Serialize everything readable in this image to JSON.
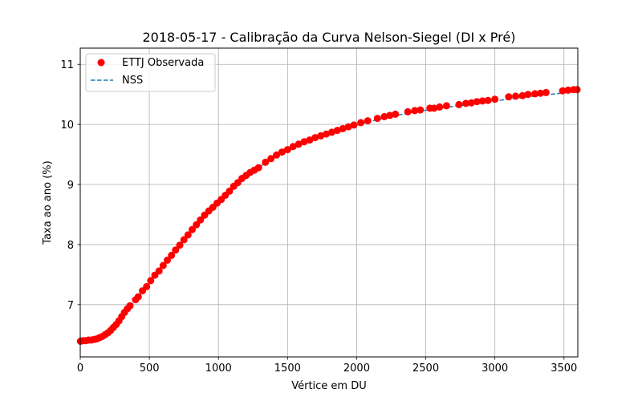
{
  "chart_data": {
    "type": "scatter",
    "title": "2018-05-17 - Calibração da Curva Nelson-Siegel (DI x Pré)",
    "xlabel": "Vértice em DU",
    "ylabel": "Taxa ao ano (%)",
    "xlim": [
      0,
      3600
    ],
    "ylim": [
      6.13,
      11.27
    ],
    "xticks": [
      0,
      500,
      1000,
      1500,
      2000,
      2500,
      3000,
      3500
    ],
    "yticks": [
      7,
      8,
      9,
      10,
      11
    ],
    "grid": true,
    "legend_position": "top-left",
    "series": [
      {
        "name": "ETTJ Observada",
        "kind": "scatter",
        "color": "#ff0000",
        "points": [
          [
            1,
            6.39
          ],
          [
            20,
            6.4
          ],
          [
            40,
            6.4
          ],
          [
            60,
            6.41
          ],
          [
            80,
            6.41
          ],
          [
            100,
            6.42
          ],
          [
            120,
            6.43
          ],
          [
            140,
            6.45
          ],
          [
            160,
            6.47
          ],
          [
            180,
            6.5
          ],
          [
            200,
            6.53
          ],
          [
            220,
            6.57
          ],
          [
            240,
            6.62
          ],
          [
            260,
            6.67
          ],
          [
            280,
            6.73
          ],
          [
            300,
            6.8
          ],
          [
            320,
            6.87
          ],
          [
            340,
            6.93
          ],
          [
            360,
            6.98
          ],
          [
            400,
            7.08
          ],
          [
            420,
            7.13
          ],
          [
            450,
            7.23
          ],
          [
            480,
            7.3
          ],
          [
            510,
            7.4
          ],
          [
            540,
            7.49
          ],
          [
            570,
            7.56
          ],
          [
            600,
            7.65
          ],
          [
            630,
            7.74
          ],
          [
            660,
            7.82
          ],
          [
            690,
            7.91
          ],
          [
            720,
            7.99
          ],
          [
            750,
            8.08
          ],
          [
            780,
            8.16
          ],
          [
            810,
            8.25
          ],
          [
            840,
            8.33
          ],
          [
            870,
            8.41
          ],
          [
            900,
            8.49
          ],
          [
            930,
            8.56
          ],
          [
            960,
            8.62
          ],
          [
            990,
            8.69
          ],
          [
            1020,
            8.75
          ],
          [
            1050,
            8.82
          ],
          [
            1080,
            8.89
          ],
          [
            1110,
            8.97
          ],
          [
            1140,
            9.03
          ],
          [
            1170,
            9.1
          ],
          [
            1200,
            9.15
          ],
          [
            1230,
            9.2
          ],
          [
            1260,
            9.24
          ],
          [
            1290,
            9.28
          ],
          [
            1340,
            9.37
          ],
          [
            1380,
            9.43
          ],
          [
            1420,
            9.49
          ],
          [
            1460,
            9.54
          ],
          [
            1500,
            9.58
          ],
          [
            1540,
            9.63
          ],
          [
            1580,
            9.67
          ],
          [
            1620,
            9.71
          ],
          [
            1660,
            9.74
          ],
          [
            1700,
            9.78
          ],
          [
            1740,
            9.81
          ],
          [
            1780,
            9.84
          ],
          [
            1820,
            9.87
          ],
          [
            1860,
            9.9
          ],
          [
            1900,
            9.93
          ],
          [
            1940,
            9.96
          ],
          [
            1980,
            9.99
          ],
          [
            2030,
            10.03
          ],
          [
            2080,
            10.06
          ],
          [
            2150,
            10.1
          ],
          [
            2200,
            10.13
          ],
          [
            2240,
            10.15
          ],
          [
            2280,
            10.17
          ],
          [
            2370,
            10.21
          ],
          [
            2420,
            10.23
          ],
          [
            2460,
            10.24
          ],
          [
            2530,
            10.27
          ],
          [
            2560,
            10.27
          ],
          [
            2600,
            10.29
          ],
          [
            2650,
            10.31
          ],
          [
            2740,
            10.33
          ],
          [
            2790,
            10.35
          ],
          [
            2830,
            10.36
          ],
          [
            2870,
            10.38
          ],
          [
            2910,
            10.39
          ],
          [
            2950,
            10.4
          ],
          [
            3000,
            10.42
          ],
          [
            3100,
            10.46
          ],
          [
            3150,
            10.47
          ],
          [
            3200,
            10.48
          ],
          [
            3240,
            10.5
          ],
          [
            3290,
            10.51
          ],
          [
            3330,
            10.52
          ],
          [
            3370,
            10.53
          ],
          [
            3490,
            10.56
          ],
          [
            3530,
            10.57
          ],
          [
            3570,
            10.58
          ],
          [
            3595,
            10.58
          ]
        ]
      },
      {
        "name": "NSS",
        "kind": "line",
        "style": "dashed",
        "color": "#1f77b4",
        "points": [
          [
            0,
            6.36
          ],
          [
            50,
            6.38
          ],
          [
            100,
            6.41
          ],
          [
            150,
            6.46
          ],
          [
            200,
            6.54
          ],
          [
            250,
            6.65
          ],
          [
            300,
            6.78
          ],
          [
            350,
            6.93
          ],
          [
            400,
            7.08
          ],
          [
            450,
            7.22
          ],
          [
            500,
            7.35
          ],
          [
            550,
            7.49
          ],
          [
            600,
            7.64
          ],
          [
            650,
            7.79
          ],
          [
            700,
            7.95
          ],
          [
            750,
            8.1
          ],
          [
            800,
            8.24
          ],
          [
            850,
            8.37
          ],
          [
            900,
            8.49
          ],
          [
            950,
            8.6
          ],
          [
            1000,
            8.71
          ],
          [
            1050,
            8.81
          ],
          [
            1100,
            8.93
          ],
          [
            1150,
            9.04
          ],
          [
            1200,
            9.14
          ],
          [
            1250,
            9.22
          ],
          [
            1300,
            9.3
          ],
          [
            1400,
            9.45
          ],
          [
            1500,
            9.57
          ],
          [
            1600,
            9.68
          ],
          [
            1700,
            9.77
          ],
          [
            1800,
            9.85
          ],
          [
            1900,
            9.92
          ],
          [
            2000,
            9.99
          ],
          [
            2200,
            10.11
          ],
          [
            2400,
            10.2
          ],
          [
            2600,
            10.27
          ],
          [
            2800,
            10.33
          ],
          [
            3000,
            10.39
          ],
          [
            3200,
            10.45
          ],
          [
            3400,
            10.5
          ],
          [
            3600,
            10.55
          ]
        ]
      }
    ]
  }
}
